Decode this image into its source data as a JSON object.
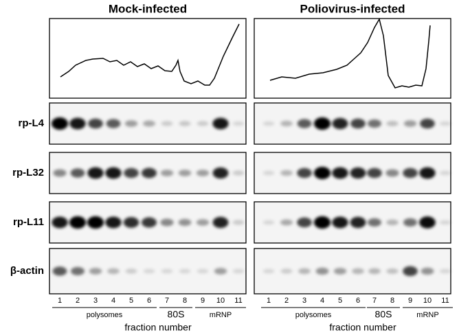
{
  "figure": {
    "panels": [
      {
        "title": "Mock-infected"
      },
      {
        "title": "Poliovirus-infected"
      }
    ],
    "rows": [
      "rp-L4",
      "rp-L32",
      "rp-L11",
      "β-actin"
    ],
    "lanes": [
      "1",
      "2",
      "3",
      "4",
      "5",
      "6",
      "7",
      "8",
      "9",
      "10",
      "11"
    ],
    "groups": [
      "polysomes",
      "80S",
      "mRNP"
    ],
    "x_label": "fraction number"
  }
}
